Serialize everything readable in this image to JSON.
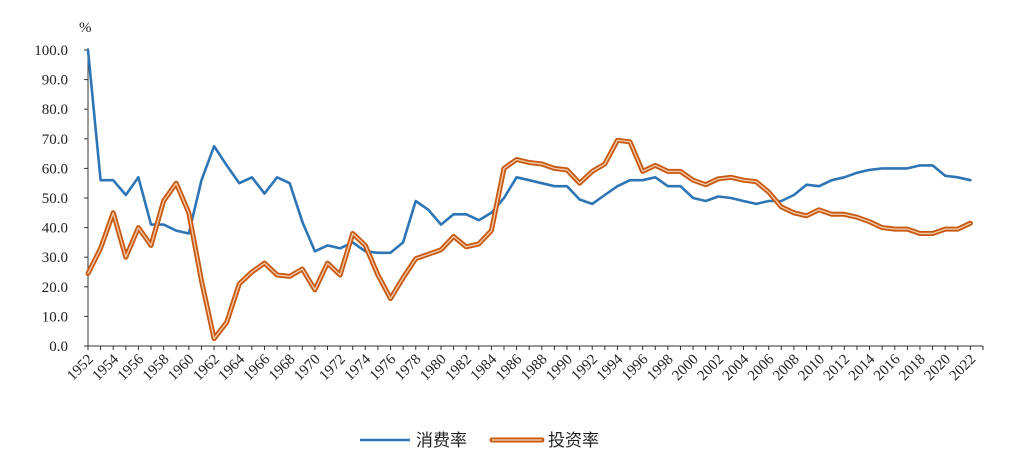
{
  "chart_data": {
    "type": "line",
    "title": "",
    "ylabel": "%",
    "xlabel": "",
    "ylim": [
      0,
      100
    ],
    "xlim": [
      1952,
      2023
    ],
    "y_ticks": [
      "0.0",
      "10.0",
      "20.0",
      "30.0",
      "40.0",
      "50.0",
      "60.0",
      "70.0",
      "80.0",
      "90.0",
      "100.0"
    ],
    "x_ticks": [
      "1952",
      "1954",
      "1956",
      "1958",
      "1960",
      "1962",
      "1964",
      "1966",
      "1968",
      "1970",
      "1972",
      "1974",
      "1976",
      "1978",
      "1980",
      "1982",
      "1984",
      "1986",
      "1988",
      "1990",
      "1992",
      "1994",
      "1996",
      "1998",
      "2000",
      "2002",
      "2004",
      "2006",
      "2008",
      "2010",
      "2012",
      "2014",
      "2016",
      "2018",
      "2020",
      "2022"
    ],
    "grid": false,
    "legend_position": "bottom-center",
    "x": [
      1952,
      1953,
      1954,
      1955,
      1956,
      1957,
      1958,
      1959,
      1960,
      1961,
      1962,
      1963,
      1964,
      1965,
      1966,
      1967,
      1968,
      1969,
      1970,
      1971,
      1972,
      1973,
      1974,
      1975,
      1976,
      1977,
      1978,
      1979,
      1980,
      1981,
      1982,
      1983,
      1984,
      1985,
      1986,
      1987,
      1988,
      1989,
      1990,
      1991,
      1992,
      1993,
      1994,
      1995,
      1996,
      1997,
      1998,
      1999,
      2000,
      2001,
      2002,
      2003,
      2004,
      2005,
      2006,
      2007,
      2008,
      2009,
      2010,
      2011,
      2012,
      2013,
      2014,
      2015,
      2016,
      2017,
      2018,
      2019,
      2020,
      2021,
      2022,
      2023
    ],
    "series": [
      {
        "name": "消费率",
        "color": "#2e75b6",
        "values": [
          100.0,
          56.0,
          56.0,
          51.0,
          57.0,
          41.0,
          41.0,
          39.0,
          38.0,
          56.0,
          67.5,
          61.0,
          55.0,
          57.0,
          51.5,
          57.0,
          55.0,
          42.0,
          32.0,
          34.0,
          33.0,
          35.0,
          32.0,
          31.5,
          31.5,
          35.0,
          49.0,
          46.0,
          41.0,
          44.5,
          44.5,
          42.5,
          45.0,
          50.0,
          57.0,
          56.0,
          55.0,
          54.0,
          54.0,
          49.5,
          48.0,
          51.0,
          54.0,
          56.0,
          56.0,
          57.0,
          54.0,
          54.0,
          50.0,
          49.0,
          50.5,
          50.0,
          49.0,
          48.0,
          49.0,
          49.0,
          51.0,
          54.5,
          54.0,
          56.0,
          57.0,
          58.5,
          59.5,
          60.0,
          60.0,
          60.0,
          61.0,
          61.0,
          57.5,
          57.0,
          56.0,
          null
        ]
      },
      {
        "name": "投资率",
        "color": "#c65911",
        "values": [
          24.5,
          33.0,
          45.0,
          30.0,
          40.0,
          34.0,
          49.0,
          55.0,
          45.0,
          22.0,
          2.5,
          8.0,
          21.0,
          25.0,
          28.0,
          24.0,
          23.5,
          26.0,
          19.0,
          28.0,
          24.0,
          38.0,
          34.0,
          24.0,
          16.0,
          23.0,
          29.5,
          31.0,
          32.5,
          37.0,
          33.5,
          34.5,
          39.0,
          60.0,
          63.0,
          62.0,
          61.5,
          60.0,
          59.5,
          55.0,
          59.0,
          61.5,
          69.5,
          69.0,
          59.0,
          61.0,
          59.0,
          59.0,
          56.0,
          54.5,
          56.5,
          57.0,
          56.0,
          55.5,
          52.0,
          47.0,
          45.0,
          44.0,
          46.0,
          44.5,
          44.5,
          43.5,
          42.0,
          40.0,
          39.5,
          39.5,
          38.0,
          38.0,
          39.5,
          39.5,
          41.5,
          null
        ]
      }
    ]
  },
  "legend": {
    "items": [
      {
        "label": "消费率",
        "color": "#2e75b6"
      },
      {
        "label": "投资率",
        "color": "#c65911"
      }
    ]
  }
}
